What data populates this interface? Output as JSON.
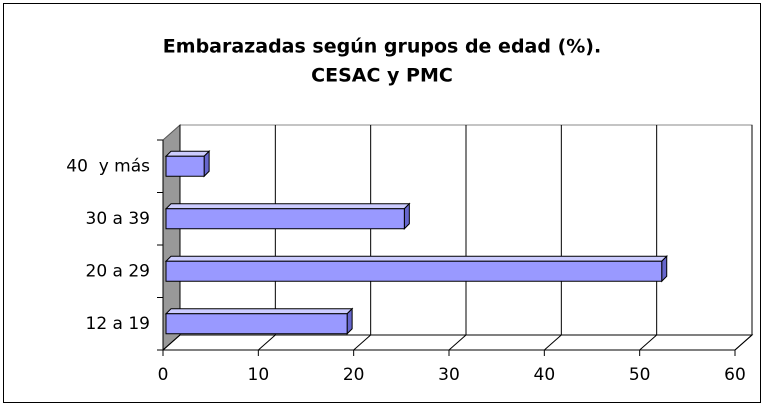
{
  "chart_data": {
    "type": "bar",
    "orientation": "horizontal",
    "title": [
      "Embarazadas según grupos de edad (%).",
      "CESAC y PMC"
    ],
    "categories": [
      "12 a 19",
      "20 a 29",
      "30 a 39",
      "40  y más"
    ],
    "values": [
      19,
      52,
      25,
      4
    ],
    "color": "#9999ff",
    "xlim": [
      0,
      60
    ],
    "xticks": [
      0,
      10,
      20,
      30,
      40,
      50,
      60
    ],
    "grid": true
  }
}
